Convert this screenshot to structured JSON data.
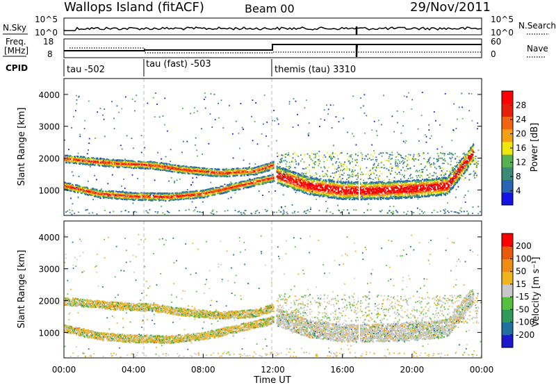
{
  "header": {
    "station": "Wallops Island (fitACF)",
    "beam": "Beam 00",
    "date": "29/Nov/2011"
  },
  "sky_panel": {
    "left_label": "N.Sky",
    "left_ticks": [
      "10^5",
      "10^0"
    ],
    "right_ticks": [
      "10^5",
      "10^0"
    ],
    "right_label": "N.Search"
  },
  "freq_panel": {
    "left_label_line1": "Freq.",
    "left_label_line2": "[MHz]",
    "left_ticks": [
      "18",
      "8"
    ],
    "right_ticks": [
      "60",
      "0"
    ],
    "right_label": "Nave"
  },
  "cpid": {
    "label": "CPID",
    "segments": [
      "tau -502",
      "tau (fast) -503",
      "themis (tau) 3310"
    ]
  },
  "x_axis": {
    "ticks": [
      "00:00",
      "04:00",
      "08:00",
      "12:00",
      "16:00",
      "20:00",
      "00:00"
    ],
    "label": "Time UT"
  },
  "chart_data": [
    {
      "type": "heatmap",
      "quantity": "Power",
      "ylabel": "Slant Range [km]",
      "yticks": [
        "1000",
        "2000",
        "3000",
        "4000"
      ],
      "ylim": [
        200,
        4500
      ],
      "xlim_hours": [
        0,
        24
      ],
      "colorbar": {
        "label": "Power [dB]",
        "ticks": [
          "28",
          "24",
          "20",
          "16",
          "12",
          "8",
          "4"
        ],
        "colors": [
          "#1414e6",
          "#2a64b4",
          "#3c8a78",
          "#55b050",
          "#f0e60a",
          "#f5a014",
          "#f26410",
          "#e61e0a",
          "#ff0000"
        ]
      },
      "bands": [
        {
          "name": "upper",
          "points": [
            [
              0,
              2000
            ],
            [
              3,
              1850
            ],
            [
              5,
              1800
            ],
            [
              7,
              1650
            ],
            [
              9,
              1550
            ],
            [
              11,
              1620
            ],
            [
              12,
              1800
            ]
          ]
        },
        {
          "name": "lower",
          "points": [
            [
              0,
              1150
            ],
            [
              2,
              900
            ],
            [
              4,
              820
            ],
            [
              6,
              800
            ],
            [
              8,
              900
            ],
            [
              10,
              1150
            ],
            [
              12,
              1400
            ]
          ]
        },
        {
          "name": "evening",
          "points": [
            [
              12.2,
              1500
            ],
            [
              14,
              1150
            ],
            [
              16,
              1000
            ],
            [
              18,
              1000
            ],
            [
              20,
              1050
            ],
            [
              22,
              1150
            ],
            [
              23.5,
              2200
            ]
          ]
        }
      ]
    },
    {
      "type": "heatmap",
      "quantity": "Velocity",
      "ylabel": "Slant Range [km]",
      "yticks": [
        "1000",
        "2000",
        "3000",
        "4000"
      ],
      "ylim": [
        200,
        4500
      ],
      "xlim_hours": [
        0,
        24
      ],
      "colorbar": {
        "label": "Velocity [m s⁻¹]",
        "ticks": [
          "200",
          "100",
          "50",
          "15",
          "-15",
          "-50",
          "-100",
          "-200"
        ],
        "colors": [
          "#1a1acc",
          "#2070a0",
          "#2e9a5a",
          "#55c040",
          "#c8c8c8",
          "#f0b41e",
          "#f08c14",
          "#e65a0a",
          "#ff0000"
        ]
      }
    }
  ]
}
